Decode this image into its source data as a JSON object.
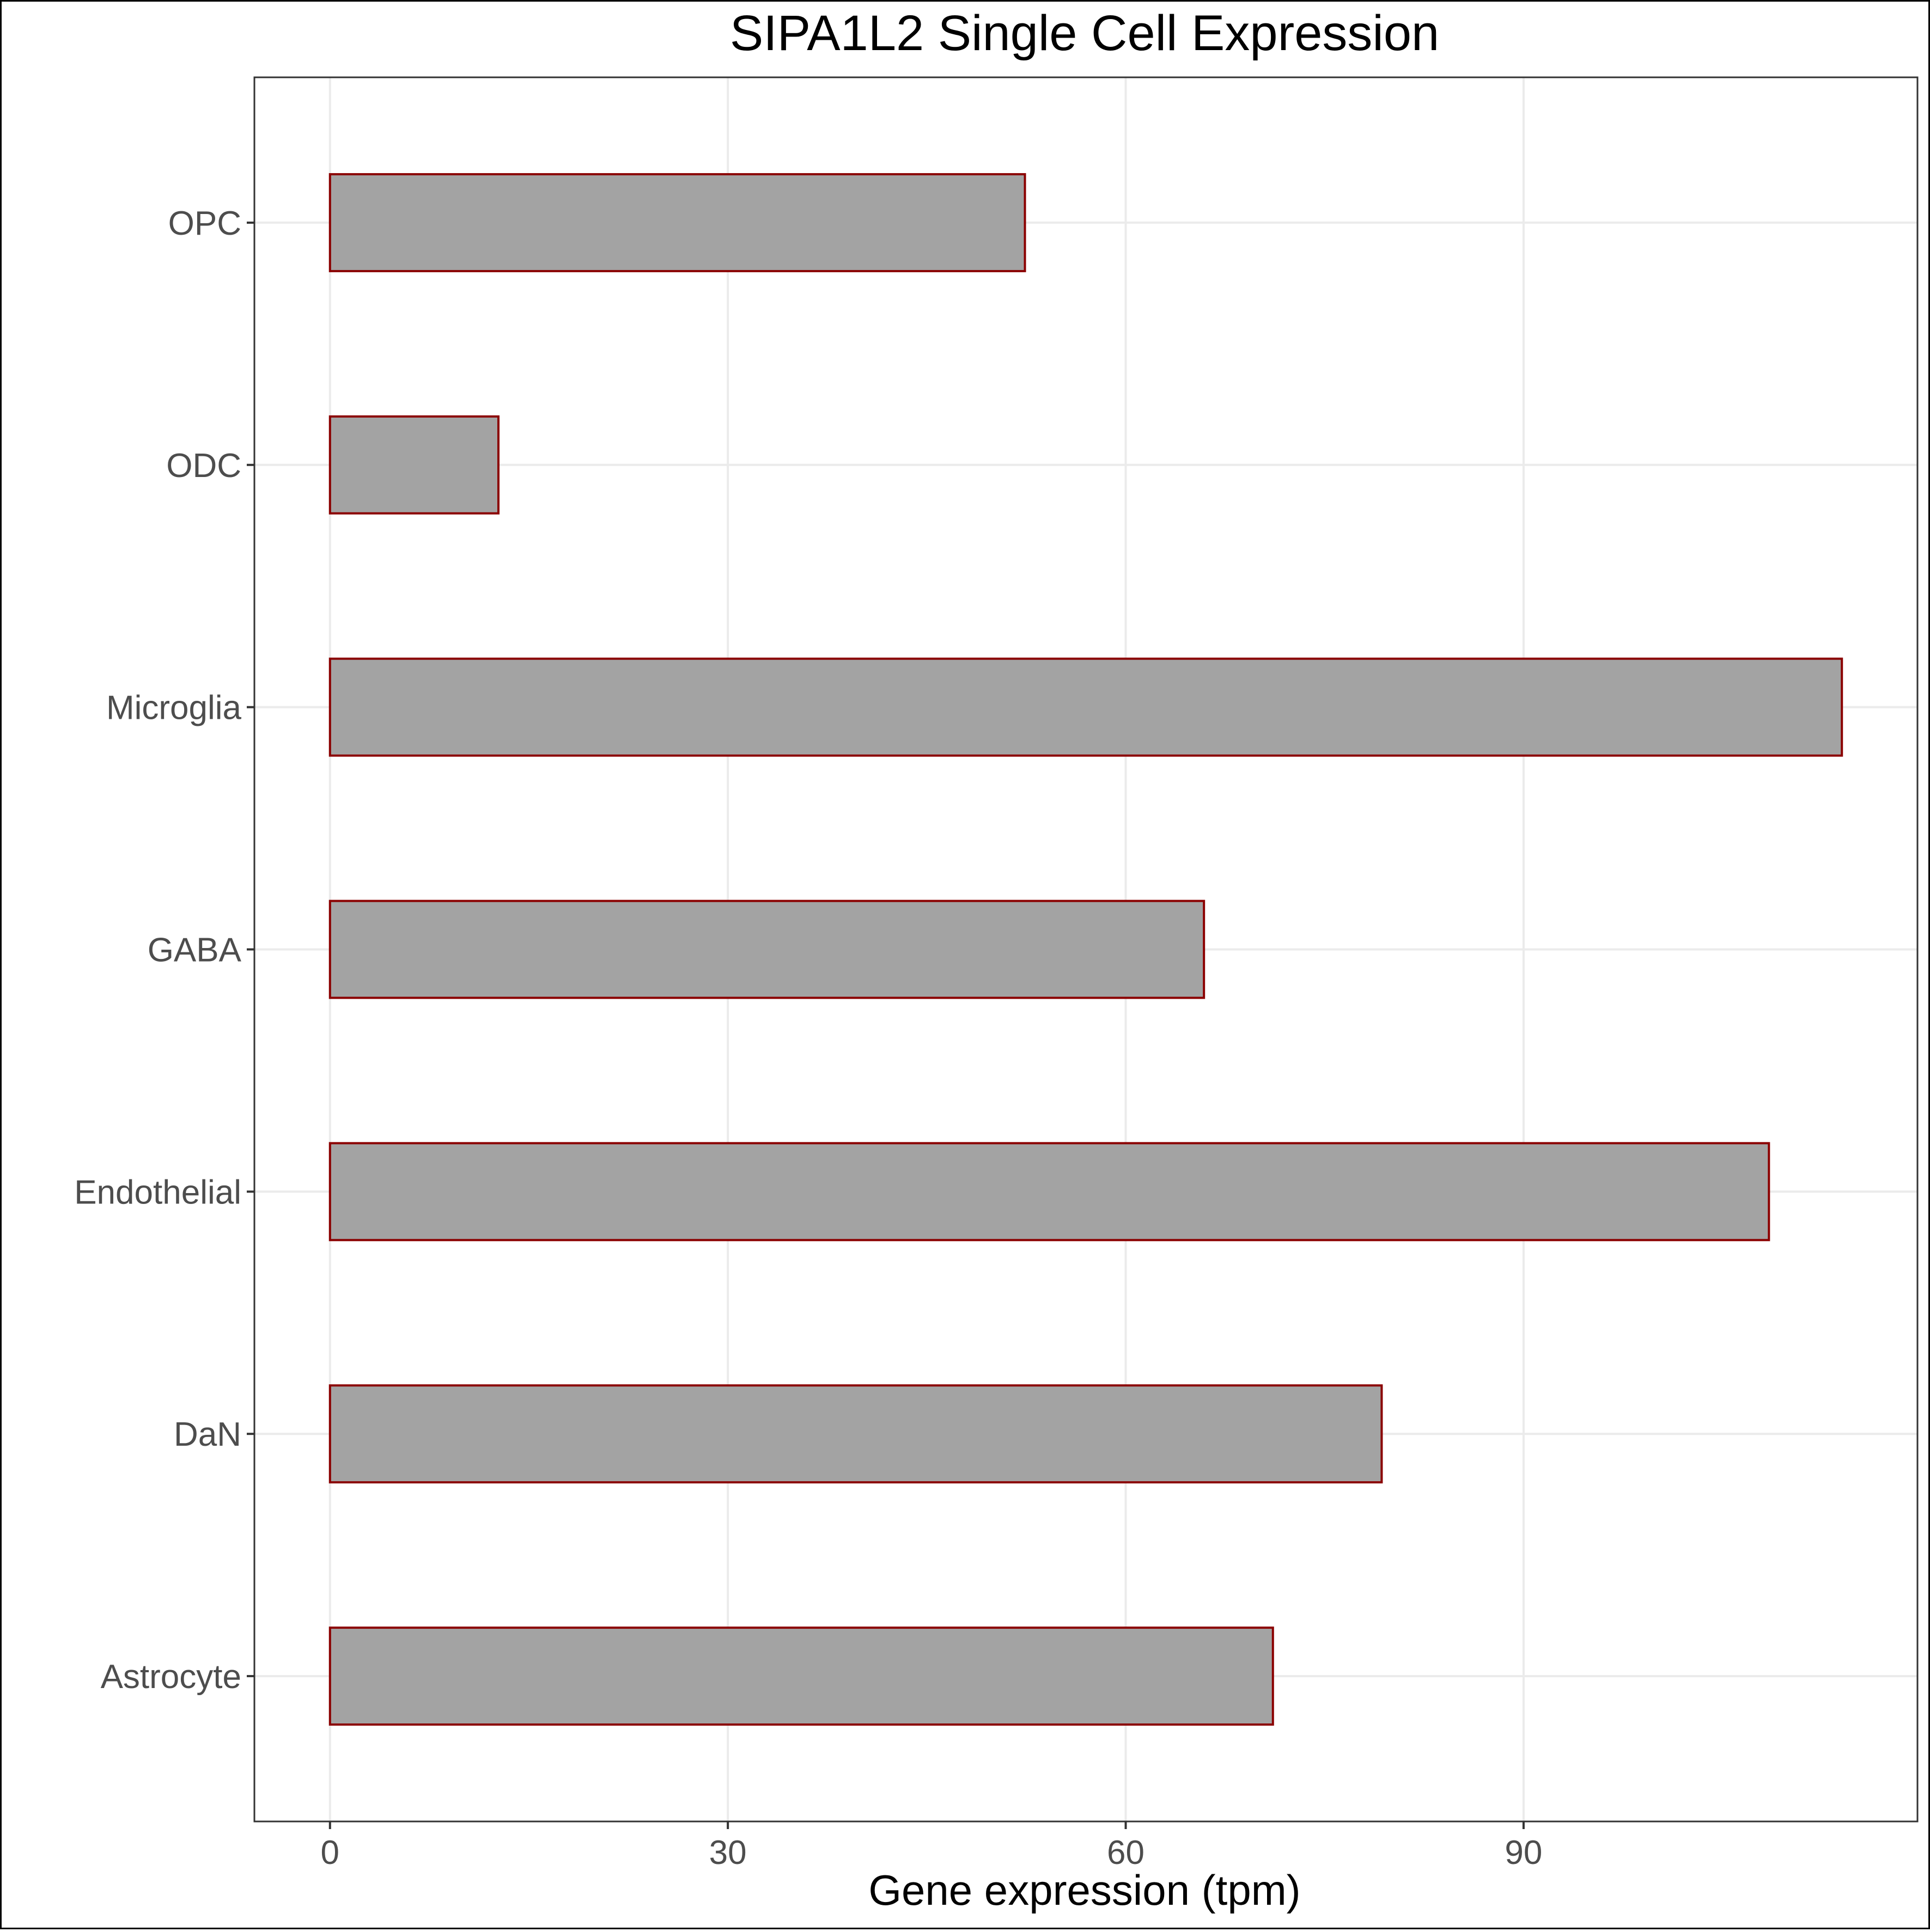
{
  "chart_data": {
    "type": "bar",
    "orientation": "horizontal",
    "title": "SIPA1L2 Single Cell Expression",
    "xlabel": "Gene expression (tpm)",
    "ylabel": "",
    "categories": [
      "Astrocyte",
      "DaN",
      "Endothelial",
      "GABA",
      "Microglia",
      "ODC",
      "OPC"
    ],
    "values": [
      71.1,
      79.3,
      108.5,
      65.9,
      114,
      12.7,
      52.4
    ],
    "xlim": [
      -5.7,
      119.7
    ],
    "xticks": [
      0,
      30,
      60,
      90
    ],
    "grid": true,
    "legend": "none",
    "colors": {
      "bar_fill": "#a3a3a3",
      "bar_stroke": "#8b0000",
      "grid": "#ebebeb",
      "panel_border": "#333333",
      "tick_text": "#4d4d4d"
    }
  }
}
